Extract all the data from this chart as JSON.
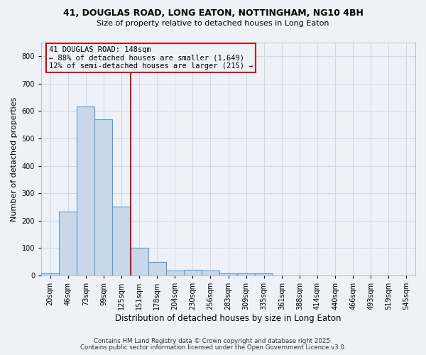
{
  "title1": "41, DOUGLAS ROAD, LONG EATON, NOTTINGHAM, NG10 4BH",
  "title2": "Size of property relative to detached houses in Long Eaton",
  "xlabel": "Distribution of detached houses by size in Long Eaton",
  "ylabel": "Number of detached properties",
  "bar_labels": [
    "20sqm",
    "46sqm",
    "73sqm",
    "99sqm",
    "125sqm",
    "151sqm",
    "178sqm",
    "204sqm",
    "230sqm",
    "256sqm",
    "283sqm",
    "309sqm",
    "335sqm",
    "361sqm",
    "388sqm",
    "414sqm",
    "440sqm",
    "466sqm",
    "493sqm",
    "519sqm",
    "545sqm"
  ],
  "bar_values": [
    8,
    233,
    618,
    570,
    252,
    100,
    50,
    18,
    20,
    18,
    8,
    7,
    7,
    0,
    0,
    0,
    0,
    0,
    0,
    0,
    0
  ],
  "bar_color": "#c8d8e8",
  "bar_edgecolor": "#5b9bd5",
  "vline_color": "#cc0000",
  "annotation_text": "41 DOUGLAS ROAD: 148sqm\n← 88% of detached houses are smaller (1,649)\n12% of semi-detached houses are larger (215) →",
  "annotation_box_color": "#cc0000",
  "ylim": [
    0,
    850
  ],
  "yticks": [
    0,
    100,
    200,
    300,
    400,
    500,
    600,
    700,
    800
  ],
  "grid_color": "#d0d8e8",
  "bg_color": "#eef2f8",
  "footer1": "Contains HM Land Registry data © Crown copyright and database right 2025.",
  "footer2": "Contains public sector information licensed under the Open Government Licence v3.0."
}
